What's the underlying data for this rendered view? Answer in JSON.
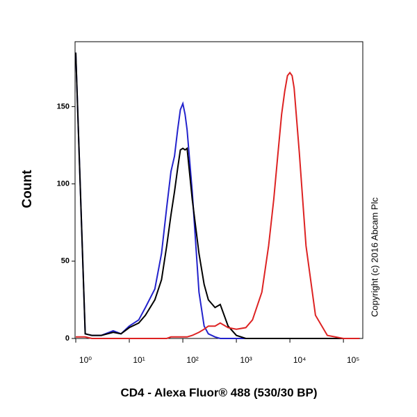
{
  "chart_data": {
    "type": "line",
    "ylabel": "Count",
    "xlabel": "CD4 - Alexa Fluor® 488 (530/30 BP)",
    "annotation": "Copyright (c) 2016 Abcam Plc",
    "xscale": "log",
    "xlim": [
      0.97,
      230000
    ],
    "ylim": [
      0,
      192
    ],
    "xticks": [
      {
        "value": 1,
        "label": "10⁰"
      },
      {
        "value": 10,
        "label": "10¹"
      },
      {
        "value": 100,
        "label": "10²"
      },
      {
        "value": 1000,
        "label": "10³"
      },
      {
        "value": 10000,
        "label": "10⁴"
      },
      {
        "value": 100000,
        "label": "10⁵"
      }
    ],
    "yticks": [
      0,
      50,
      100,
      150
    ],
    "x": [
      1,
      1.5,
      2,
      3,
      5,
      7,
      10,
      15,
      20,
      30,
      40,
      50,
      60,
      70,
      80,
      90,
      100,
      110,
      120,
      150,
      200,
      250,
      300,
      400,
      500,
      700,
      1000,
      1500,
      2000,
      3000,
      4000,
      5000,
      6000,
      7000,
      8000,
      9000,
      10000,
      11000,
      12000,
      15000,
      20000,
      30000,
      50000,
      100000,
      200000
    ],
    "series": [
      {
        "color": "#2222cc",
        "values": [
          185,
          3,
          2,
          2,
          5,
          3,
          8,
          12,
          20,
          32,
          55,
          85,
          108,
          118,
          135,
          148,
          152,
          145,
          135,
          95,
          30,
          8,
          3,
          1,
          0,
          0,
          0,
          0,
          0,
          0,
          0,
          0,
          0,
          0,
          0,
          0,
          0,
          0,
          0,
          0,
          0,
          0,
          0,
          0,
          0
        ]
      },
      {
        "color": "#000000",
        "values": [
          185,
          3,
          2,
          2,
          4,
          3,
          7,
          10,
          15,
          25,
          38,
          60,
          80,
          95,
          110,
          122,
          123,
          122,
          123,
          90,
          55,
          35,
          25,
          20,
          22,
          8,
          2,
          0,
          0,
          0,
          0,
          0,
          0,
          0,
          0,
          0,
          0,
          0,
          0,
          0,
          0,
          0,
          0,
          0,
          0
        ]
      },
      {
        "color": "#dd2222",
        "values": [
          1,
          1,
          0,
          0,
          0,
          0,
          0,
          0,
          0,
          0,
          0,
          0,
          1,
          1,
          1,
          1,
          1,
          1,
          1,
          2,
          4,
          6,
          8,
          8,
          10,
          7,
          6,
          7,
          12,
          30,
          60,
          90,
          120,
          145,
          160,
          170,
          172,
          170,
          162,
          120,
          60,
          15,
          2,
          0,
          0
        ]
      }
    ]
  }
}
